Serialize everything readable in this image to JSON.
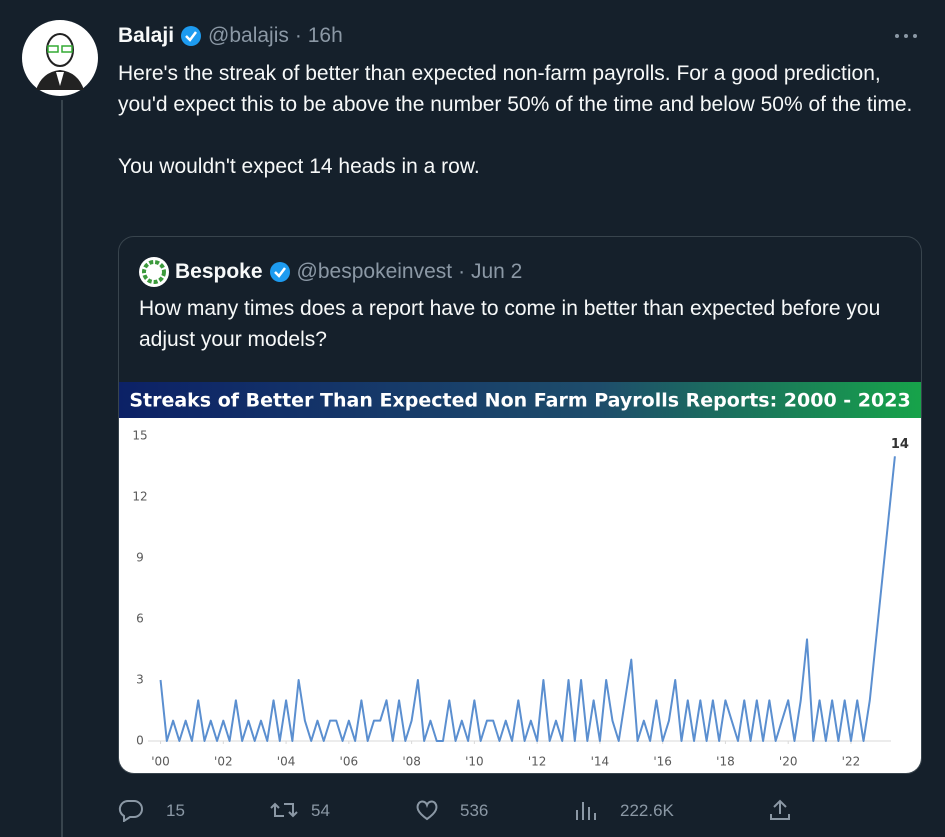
{
  "tweet": {
    "author": "Balaji",
    "handle": "@balajis",
    "time": "· 16h",
    "text": [
      "Here's the streak of better than expected non-farm payrolls. For a good prediction, you'd expect this to be above the number 50% of the time and below 50% of the time.",
      "You wouldn't expect 14 heads in a row."
    ],
    "quote": {
      "author": "Bespoke",
      "handle": "@bespokeinvest",
      "date": "· Jun 2",
      "text": "How many times does a report have to come in better than expected before you adjust your models?"
    },
    "stats": {
      "replies": "15",
      "retweets": "54",
      "likes": "536",
      "views": "222.6K"
    }
  },
  "chart_data": {
    "type": "line",
    "title": "Streaks of Better Than Expected Non Farm Payrolls Reports: 2000 - 2023",
    "x": [
      2000,
      2000.2,
      2000.4,
      2000.6,
      2000.8,
      2001,
      2001.2,
      2001.4,
      2001.6,
      2001.8,
      2002,
      2002.2,
      2002.4,
      2002.6,
      2002.8,
      2003,
      2003.2,
      2003.4,
      2003.6,
      2003.8,
      2004,
      2004.2,
      2004.4,
      2004.6,
      2004.8,
      2005,
      2005.2,
      2005.4,
      2005.6,
      2005.8,
      2006,
      2006.2,
      2006.4,
      2006.6,
      2006.8,
      2007,
      2007.2,
      2007.4,
      2007.6,
      2007.8,
      2008,
      2008.2,
      2008.4,
      2008.6,
      2008.8,
      2009,
      2009.2,
      2009.4,
      2009.6,
      2009.8,
      2010,
      2010.2,
      2010.4,
      2010.6,
      2010.8,
      2011,
      2011.2,
      2011.4,
      2011.6,
      2011.8,
      2012,
      2012.2,
      2012.4,
      2012.6,
      2012.8,
      2013,
      2013.2,
      2013.4,
      2013.6,
      2013.8,
      2014,
      2014.2,
      2014.4,
      2014.6,
      2014.8,
      2015,
      2015.2,
      2015.4,
      2015.6,
      2015.8,
      2016,
      2016.2,
      2016.4,
      2016.6,
      2016.8,
      2017,
      2017.2,
      2017.4,
      2017.6,
      2017.8,
      2018,
      2018.2,
      2018.4,
      2018.6,
      2018.8,
      2019,
      2019.2,
      2019.4,
      2019.6,
      2019.8,
      2020,
      2020.2,
      2020.4,
      2020.6,
      2020.8,
      2021,
      2021.2,
      2021.4,
      2021.6,
      2021.8,
      2022,
      2022.2,
      2022.4,
      2022.6,
      2022.8,
      2023,
      2023.2,
      2023.4
    ],
    "series": [
      {
        "color": "#5b8fd0",
        "values": [
          3,
          0,
          1,
          0,
          1,
          0,
          2,
          0,
          1,
          0,
          1,
          0,
          2,
          0,
          1,
          0,
          1,
          0,
          2,
          0,
          2,
          0,
          3,
          1,
          0,
          1,
          0,
          1,
          1,
          0,
          1,
          0,
          2,
          0,
          1,
          1,
          2,
          0,
          2,
          0,
          1,
          3,
          0,
          1,
          0,
          0,
          2,
          0,
          1,
          0,
          2,
          0,
          1,
          1,
          0,
          1,
          0,
          2,
          0,
          1,
          0,
          3,
          0,
          1,
          0,
          3,
          0,
          3,
          0,
          2,
          0,
          3,
          1,
          0,
          2,
          4,
          0,
          1,
          0,
          2,
          0,
          1,
          3,
          0,
          2,
          0,
          2,
          0,
          2,
          0,
          2,
          1,
          0,
          2,
          0,
          2,
          0,
          2,
          0,
          1,
          2,
          0,
          2,
          5,
          0,
          2,
          0,
          2,
          0,
          2,
          0,
          2,
          0,
          2,
          5,
          8,
          11,
          14
        ]
      }
    ],
    "xlim": [
      1999.6,
      2024.2
    ],
    "xticks": [
      {
        "value": 2000,
        "label": "'00"
      },
      {
        "value": 2002,
        "label": "'02"
      },
      {
        "value": 2004,
        "label": "'04"
      },
      {
        "value": 2006,
        "label": "'06"
      },
      {
        "value": 2008,
        "label": "'08"
      },
      {
        "value": 2010,
        "label": "'10"
      },
      {
        "value": 2012,
        "label": "'12"
      },
      {
        "value": 2014,
        "label": "'14"
      },
      {
        "value": 2016,
        "label": "'16"
      },
      {
        "value": 2018,
        "label": "'18"
      },
      {
        "value": 2020,
        "label": "'20"
      },
      {
        "value": 2022,
        "label": "'22"
      }
    ],
    "ylim": [
      0,
      15
    ],
    "yticks": [
      0,
      3,
      6,
      9,
      12,
      15
    ],
    "grid": false
  }
}
